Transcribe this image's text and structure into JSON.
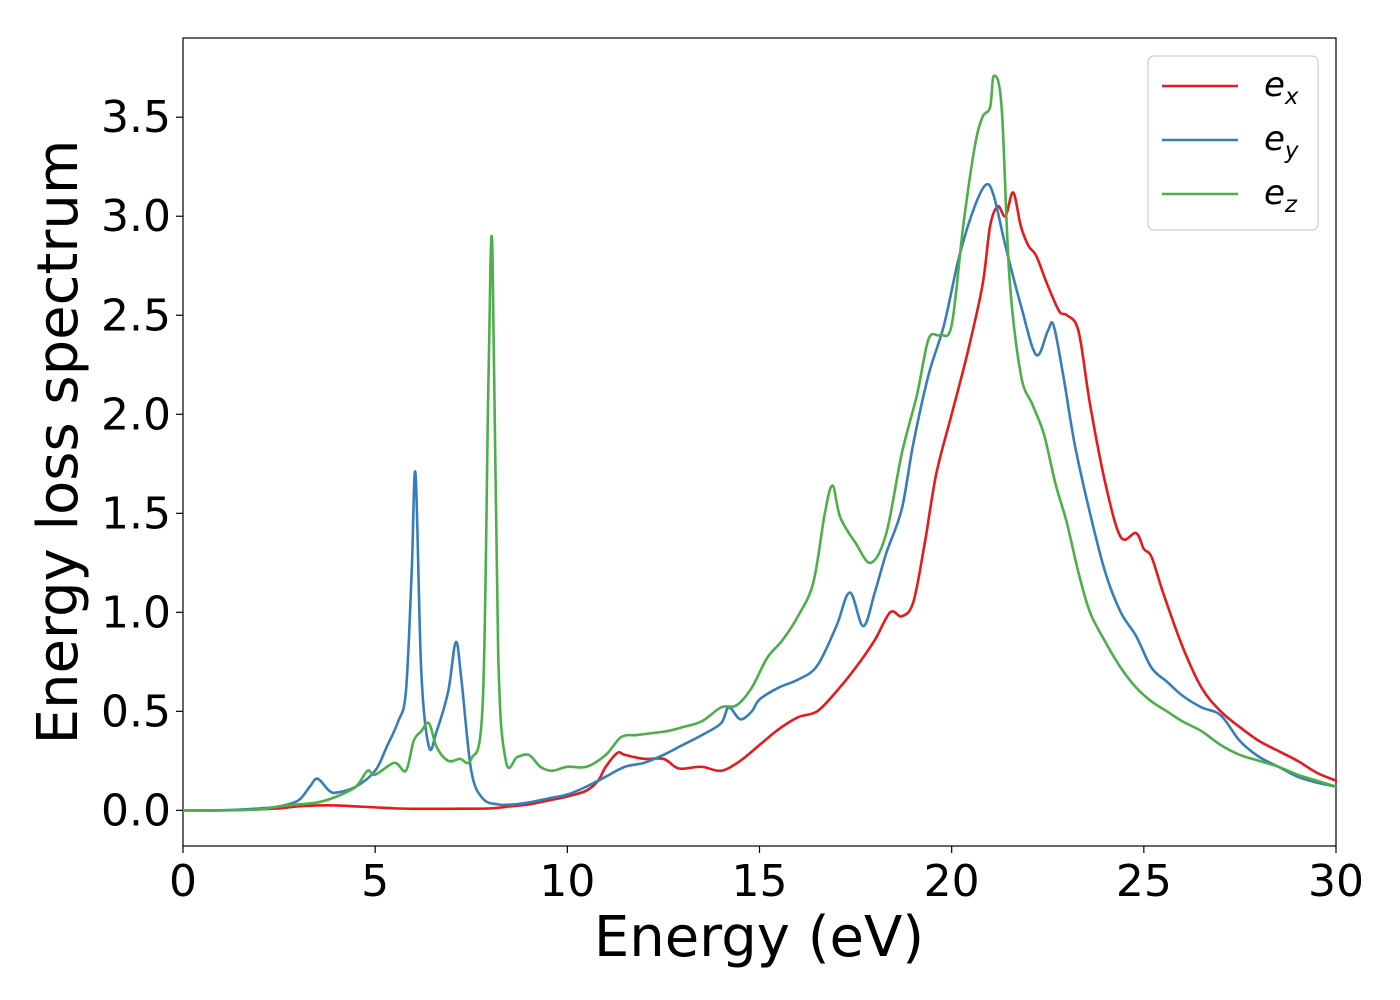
{
  "chart_data": {
    "type": "line",
    "xlabel": "Energy (eV)",
    "ylabel": "Energy loss spectrum",
    "xlim": [
      0,
      30
    ],
    "ylim": [
      -0.18,
      3.9
    ],
    "xticks": [
      0,
      5,
      10,
      15,
      20,
      25,
      30
    ],
    "yticks": [
      0.0,
      0.5,
      1.0,
      1.5,
      2.0,
      2.5,
      3.0,
      3.5
    ],
    "grid": false,
    "legend_position": "top-right",
    "series": [
      {
        "name": "e_x",
        "legend_base": "e",
        "legend_sub": "x",
        "color": "#e41a1c",
        "x": [
          0,
          1,
          2,
          2.5,
          3,
          3.5,
          4,
          4.5,
          5,
          5.5,
          6,
          7,
          8,
          8.5,
          9,
          9.5,
          10,
          10.5,
          10.8,
          11,
          11.3,
          11.5,
          12,
          12.5,
          12.8,
          13,
          13.5,
          14,
          14.5,
          15,
          15.5,
          16,
          16.5,
          17,
          17.5,
          18,
          18.4,
          18.7,
          19,
          19.3,
          19.6,
          20,
          20.4,
          20.8,
          21,
          21.2,
          21.4,
          21.6,
          21.8,
          22,
          22.2,
          22.5,
          22.8,
          23,
          23.3,
          23.6,
          24,
          24.4,
          24.8,
          25,
          25.2,
          25.5,
          26,
          26.5,
          27,
          27.5,
          28,
          28.5,
          29,
          29.5,
          30
        ],
        "y": [
          0,
          0,
          0.005,
          0.01,
          0.02,
          0.025,
          0.025,
          0.02,
          0.015,
          0.01,
          0.008,
          0.008,
          0.01,
          0.02,
          0.03,
          0.05,
          0.07,
          0.1,
          0.15,
          0.22,
          0.29,
          0.28,
          0.26,
          0.26,
          0.22,
          0.21,
          0.22,
          0.2,
          0.25,
          0.33,
          0.41,
          0.47,
          0.5,
          0.6,
          0.72,
          0.86,
          1.0,
          0.98,
          1.05,
          1.35,
          1.7,
          2.0,
          2.3,
          2.65,
          2.95,
          3.05,
          3.0,
          3.12,
          2.95,
          2.85,
          2.8,
          2.65,
          2.52,
          2.5,
          2.42,
          2.05,
          1.65,
          1.38,
          1.4,
          1.32,
          1.28,
          1.1,
          0.83,
          0.62,
          0.5,
          0.42,
          0.35,
          0.3,
          0.25,
          0.19,
          0.15
        ]
      },
      {
        "name": "e_y",
        "legend_base": "e",
        "legend_sub": "y",
        "color": "#377eb8",
        "x": [
          0,
          1,
          2,
          2.5,
          3,
          3.3,
          3.5,
          3.8,
          4,
          4.5,
          5,
          5.3,
          5.6,
          5.8,
          5.95,
          6.05,
          6.2,
          6.4,
          6.6,
          6.9,
          7.1,
          7.25,
          7.5,
          7.8,
          8.2,
          8.6,
          9,
          9.5,
          10,
          10.5,
          11,
          11.5,
          12,
          12.5,
          13,
          13.5,
          14,
          14.2,
          14.5,
          14.8,
          15,
          15.5,
          16,
          16.5,
          17,
          17.35,
          17.7,
          18,
          18.3,
          18.7,
          19,
          19.4,
          19.8,
          20.2,
          20.6,
          20.9,
          21.1,
          21.4,
          21.8,
          22.2,
          22.5,
          22.65,
          22.9,
          23.2,
          23.6,
          24,
          24.4,
          24.8,
          25.2,
          25.6,
          26,
          26.5,
          27,
          27.5,
          28,
          28.5,
          29,
          29.5,
          30
        ],
        "y": [
          0,
          0,
          0.01,
          0.02,
          0.05,
          0.12,
          0.16,
          0.1,
          0.09,
          0.12,
          0.2,
          0.32,
          0.45,
          0.6,
          1.2,
          1.7,
          0.7,
          0.32,
          0.4,
          0.6,
          0.85,
          0.65,
          0.2,
          0.06,
          0.03,
          0.03,
          0.04,
          0.06,
          0.08,
          0.12,
          0.17,
          0.22,
          0.24,
          0.28,
          0.33,
          0.38,
          0.44,
          0.52,
          0.46,
          0.5,
          0.56,
          0.62,
          0.66,
          0.73,
          0.93,
          1.1,
          0.93,
          1.1,
          1.3,
          1.52,
          1.85,
          2.2,
          2.45,
          2.8,
          3.05,
          3.16,
          3.1,
          2.85,
          2.55,
          2.3,
          2.42,
          2.45,
          2.2,
          1.85,
          1.5,
          1.2,
          1.0,
          0.88,
          0.72,
          0.65,
          0.58,
          0.52,
          0.48,
          0.35,
          0.27,
          0.22,
          0.17,
          0.14,
          0.12
        ]
      },
      {
        "name": "e_z",
        "legend_base": "e",
        "legend_sub": "z",
        "color": "#4daf4a",
        "x": [
          0,
          1,
          2,
          2.5,
          3,
          3.5,
          4,
          4.5,
          4.8,
          5,
          5.5,
          5.8,
          6,
          6.2,
          6.4,
          6.6,
          6.9,
          7.2,
          7.5,
          7.8,
          7.95,
          8.05,
          8.2,
          8.4,
          8.7,
          9,
          9.3,
          9.6,
          10,
          10.5,
          11,
          11.4,
          11.8,
          12.2,
          12.6,
          13,
          13.5,
          14,
          14.4,
          14.8,
          15.2,
          15.6,
          16,
          16.4,
          16.7,
          16.9,
          17.1,
          17.5,
          17.9,
          18.3,
          18.7,
          19.1,
          19.4,
          19.7,
          20,
          20.3,
          20.6,
          20.8,
          21,
          21.1,
          21.3,
          21.5,
          21.8,
          22.1,
          22.4,
          22.7,
          23,
          23.3,
          23.6,
          24,
          24.4,
          24.8,
          25.2,
          25.6,
          26,
          26.5,
          27,
          27.5,
          28,
          28.5,
          29,
          29.5,
          30
        ],
        "y": [
          0,
          0,
          0.005,
          0.02,
          0.03,
          0.04,
          0.07,
          0.12,
          0.2,
          0.18,
          0.24,
          0.2,
          0.35,
          0.4,
          0.44,
          0.32,
          0.25,
          0.26,
          0.26,
          0.55,
          2.2,
          2.84,
          0.8,
          0.25,
          0.27,
          0.28,
          0.22,
          0.2,
          0.22,
          0.22,
          0.28,
          0.37,
          0.38,
          0.39,
          0.4,
          0.42,
          0.45,
          0.52,
          0.53,
          0.62,
          0.77,
          0.86,
          0.98,
          1.15,
          1.5,
          1.64,
          1.48,
          1.35,
          1.25,
          1.4,
          1.8,
          2.1,
          2.38,
          2.4,
          2.45,
          2.95,
          3.35,
          3.5,
          3.55,
          3.71,
          3.55,
          2.7,
          2.2,
          2.05,
          1.9,
          1.65,
          1.45,
          1.2,
          1.0,
          0.85,
          0.72,
          0.62,
          0.55,
          0.5,
          0.45,
          0.4,
          0.33,
          0.28,
          0.25,
          0.22,
          0.18,
          0.15,
          0.12
        ]
      }
    ]
  }
}
